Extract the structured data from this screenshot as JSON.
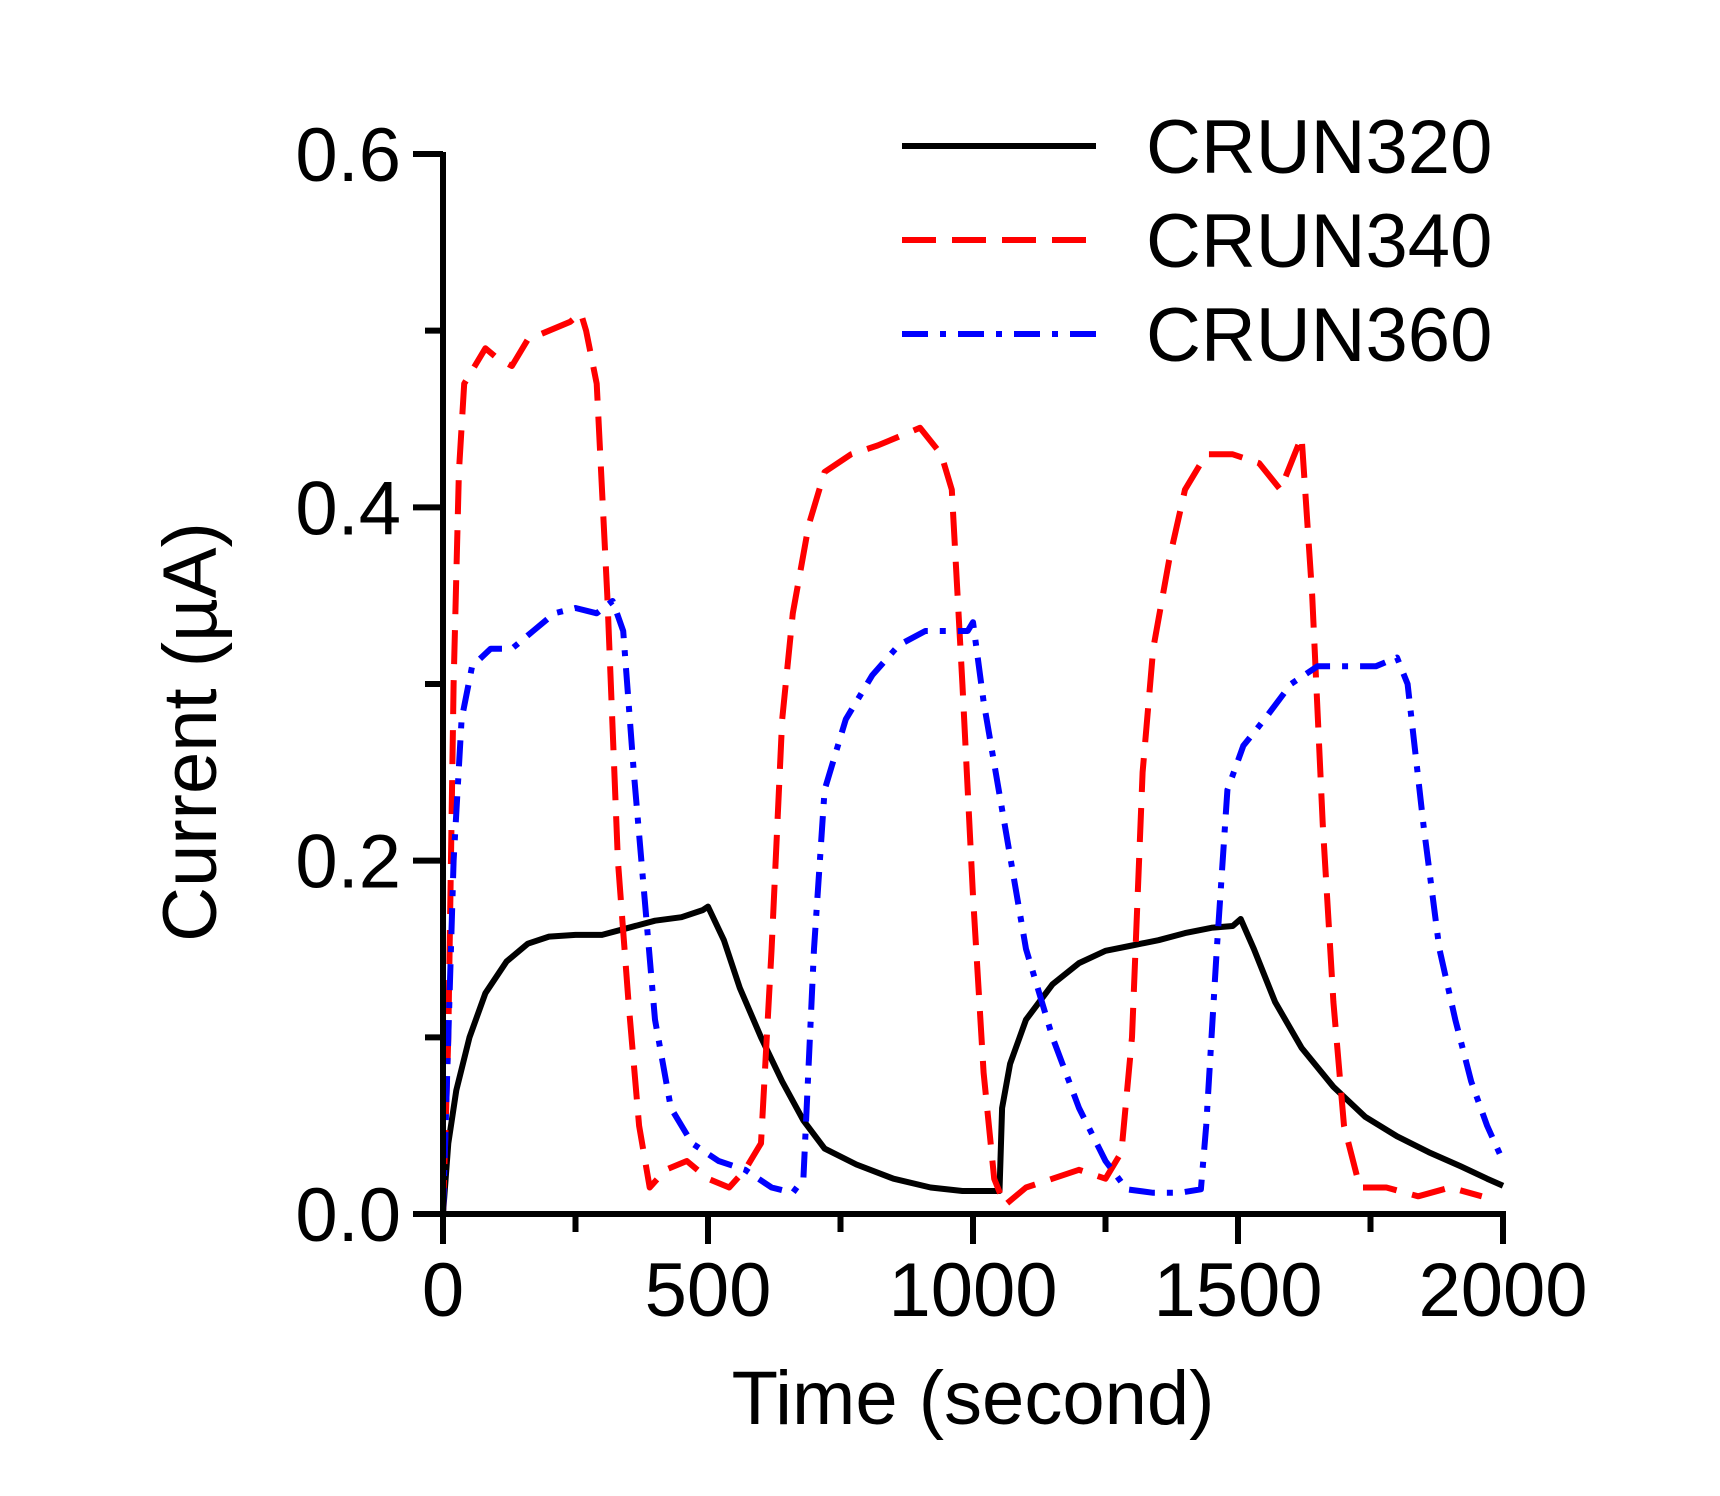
{
  "chart_data": {
    "type": "line",
    "xlabel": "Time (second)",
    "ylabel": "Current (µA)",
    "xlim": [
      0,
      2000
    ],
    "ylim": [
      0,
      0.6
    ],
    "x_ticks": [
      0,
      500,
      1000,
      1500,
      2000
    ],
    "x_tick_labels": [
      "0",
      "500",
      "1000",
      "1500",
      "2000"
    ],
    "x_minor_ticks": [
      250,
      750,
      1250,
      1750
    ],
    "y_ticks": [
      0,
      0.2,
      0.4,
      0.6
    ],
    "y_tick_labels": [
      "0.0",
      "0.2",
      "0.4",
      "0.6"
    ],
    "y_minor_ticks": [
      0.1,
      0.3,
      0.5
    ],
    "grid": false,
    "legend_position": "top-right",
    "series": [
      {
        "name": "CRUN320",
        "color": "#000000",
        "dash": "solid",
        "points": [
          [
            0,
            0.0
          ],
          [
            10,
            0.04
          ],
          [
            25,
            0.07
          ],
          [
            50,
            0.1
          ],
          [
            80,
            0.125
          ],
          [
            120,
            0.143
          ],
          [
            160,
            0.153
          ],
          [
            200,
            0.157
          ],
          [
            250,
            0.158
          ],
          [
            300,
            0.158
          ],
          [
            350,
            0.162
          ],
          [
            400,
            0.166
          ],
          [
            450,
            0.168
          ],
          [
            490,
            0.172
          ],
          [
            500,
            0.174
          ],
          [
            530,
            0.155
          ],
          [
            560,
            0.128
          ],
          [
            600,
            0.1
          ],
          [
            640,
            0.075
          ],
          [
            680,
            0.053
          ],
          [
            720,
            0.037
          ],
          [
            780,
            0.028
          ],
          [
            850,
            0.02
          ],
          [
            920,
            0.015
          ],
          [
            980,
            0.013
          ],
          [
            1050,
            0.013
          ],
          [
            1055,
            0.06
          ],
          [
            1070,
            0.085
          ],
          [
            1100,
            0.11
          ],
          [
            1150,
            0.13
          ],
          [
            1200,
            0.142
          ],
          [
            1250,
            0.149
          ],
          [
            1300,
            0.152
          ],
          [
            1350,
            0.155
          ],
          [
            1400,
            0.159
          ],
          [
            1450,
            0.162
          ],
          [
            1490,
            0.163
          ],
          [
            1505,
            0.167
          ],
          [
            1530,
            0.15
          ],
          [
            1570,
            0.12
          ],
          [
            1620,
            0.094
          ],
          [
            1680,
            0.072
          ],
          [
            1740,
            0.055
          ],
          [
            1800,
            0.044
          ],
          [
            1860,
            0.035
          ],
          [
            1920,
            0.027
          ],
          [
            1970,
            0.02
          ],
          [
            2000,
            0.016
          ]
        ]
      },
      {
        "name": "CRUN340",
        "color": "#ff0000",
        "dash": "dashed",
        "points": [
          [
            0,
            0.0
          ],
          [
            10,
            0.1
          ],
          [
            20,
            0.3
          ],
          [
            30,
            0.42
          ],
          [
            40,
            0.47
          ],
          [
            60,
            0.48
          ],
          [
            80,
            0.49
          ],
          [
            100,
            0.485
          ],
          [
            130,
            0.48
          ],
          [
            160,
            0.495
          ],
          [
            200,
            0.5
          ],
          [
            240,
            0.505
          ],
          [
            260,
            0.51
          ],
          [
            270,
            0.5
          ],
          [
            290,
            0.47
          ],
          [
            310,
            0.35
          ],
          [
            330,
            0.2
          ],
          [
            350,
            0.12
          ],
          [
            370,
            0.05
          ],
          [
            390,
            0.015
          ],
          [
            420,
            0.025
          ],
          [
            460,
            0.03
          ],
          [
            500,
            0.02
          ],
          [
            540,
            0.015
          ],
          [
            570,
            0.025
          ],
          [
            600,
            0.04
          ],
          [
            620,
            0.15
          ],
          [
            640,
            0.28
          ],
          [
            660,
            0.34
          ],
          [
            690,
            0.39
          ],
          [
            720,
            0.42
          ],
          [
            770,
            0.43
          ],
          [
            820,
            0.435
          ],
          [
            860,
            0.44
          ],
          [
            900,
            0.445
          ],
          [
            940,
            0.43
          ],
          [
            960,
            0.41
          ],
          [
            980,
            0.3
          ],
          [
            1000,
            0.18
          ],
          [
            1020,
            0.08
          ],
          [
            1040,
            0.02
          ],
          [
            1060,
            0.005
          ],
          [
            1100,
            0.015
          ],
          [
            1150,
            0.02
          ],
          [
            1200,
            0.025
          ],
          [
            1250,
            0.02
          ],
          [
            1280,
            0.035
          ],
          [
            1300,
            0.1
          ],
          [
            1320,
            0.25
          ],
          [
            1340,
            0.32
          ],
          [
            1370,
            0.37
          ],
          [
            1400,
            0.41
          ],
          [
            1440,
            0.43
          ],
          [
            1490,
            0.43
          ],
          [
            1540,
            0.425
          ],
          [
            1580,
            0.41
          ],
          [
            1620,
            0.44
          ],
          [
            1640,
            0.35
          ],
          [
            1660,
            0.22
          ],
          [
            1680,
            0.12
          ],
          [
            1700,
            0.05
          ],
          [
            1730,
            0.015
          ],
          [
            1780,
            0.015
          ],
          [
            1840,
            0.01
          ],
          [
            1900,
            0.015
          ],
          [
            1960,
            0.01
          ]
        ]
      },
      {
        "name": "CRUN360",
        "color": "#0000ff",
        "dash": "dashdot",
        "points": [
          [
            0,
            0.0
          ],
          [
            10,
            0.1
          ],
          [
            20,
            0.2
          ],
          [
            35,
            0.28
          ],
          [
            55,
            0.31
          ],
          [
            90,
            0.32
          ],
          [
            130,
            0.32
          ],
          [
            170,
            0.33
          ],
          [
            210,
            0.34
          ],
          [
            250,
            0.343
          ],
          [
            290,
            0.34
          ],
          [
            320,
            0.347
          ],
          [
            340,
            0.33
          ],
          [
            360,
            0.25
          ],
          [
            380,
            0.18
          ],
          [
            400,
            0.11
          ],
          [
            430,
            0.06
          ],
          [
            470,
            0.04
          ],
          [
            520,
            0.03
          ],
          [
            570,
            0.025
          ],
          [
            620,
            0.015
          ],
          [
            660,
            0.012
          ],
          [
            680,
            0.02
          ],
          [
            700,
            0.15
          ],
          [
            720,
            0.24
          ],
          [
            760,
            0.28
          ],
          [
            810,
            0.305
          ],
          [
            860,
            0.322
          ],
          [
            910,
            0.33
          ],
          [
            960,
            0.33
          ],
          [
            990,
            0.33
          ],
          [
            1000,
            0.335
          ],
          [
            1020,
            0.29
          ],
          [
            1060,
            0.22
          ],
          [
            1100,
            0.15
          ],
          [
            1150,
            0.1
          ],
          [
            1200,
            0.06
          ],
          [
            1250,
            0.03
          ],
          [
            1290,
            0.014
          ],
          [
            1340,
            0.012
          ],
          [
            1390,
            0.012
          ],
          [
            1430,
            0.014
          ],
          [
            1440,
            0.05
          ],
          [
            1460,
            0.15
          ],
          [
            1480,
            0.24
          ],
          [
            1510,
            0.265
          ],
          [
            1550,
            0.28
          ],
          [
            1600,
            0.3
          ],
          [
            1650,
            0.31
          ],
          [
            1700,
            0.31
          ],
          [
            1760,
            0.31
          ],
          [
            1800,
            0.315
          ],
          [
            1820,
            0.3
          ],
          [
            1850,
            0.22
          ],
          [
            1880,
            0.15
          ],
          [
            1910,
            0.11
          ],
          [
            1940,
            0.075
          ],
          [
            1970,
            0.05
          ],
          [
            2000,
            0.03
          ]
        ]
      }
    ]
  }
}
